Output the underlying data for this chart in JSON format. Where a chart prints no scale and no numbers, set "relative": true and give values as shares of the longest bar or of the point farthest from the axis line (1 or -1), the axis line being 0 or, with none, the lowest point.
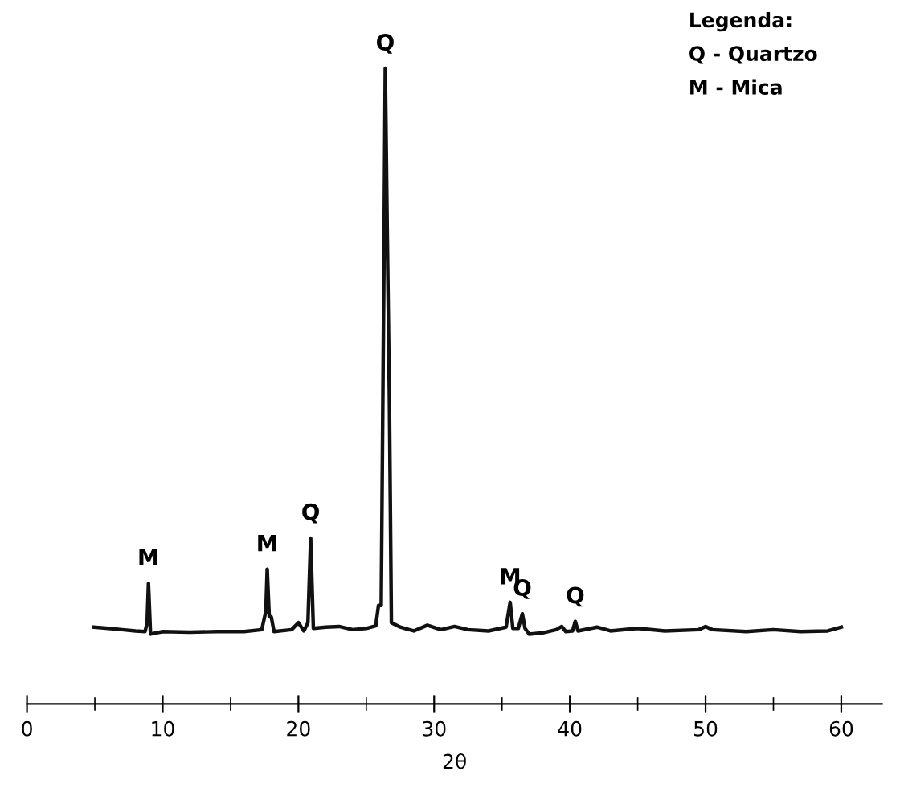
{
  "chart_data": {
    "type": "line",
    "relative": true,
    "xlabel": "2θ",
    "xlim": [
      0,
      63
    ],
    "xticks": [
      0,
      {
        "value": 5,
        "label": null
      },
      10,
      {
        "value": 15,
        "label": null
      },
      20,
      {
        "value": 25,
        "label": null
      },
      30,
      {
        "value": 35,
        "label": null
      },
      40,
      {
        "value": 45,
        "label": null
      },
      50,
      {
        "value": 55,
        "label": null
      },
      60
    ],
    "grid": false,
    "marker": "none",
    "line_style": "solid",
    "series": [
      {
        "color": "#111111",
        "x": [
          4.9,
          6,
          7,
          8,
          8.7,
          8.85,
          8.95,
          9.1,
          10,
          12,
          14,
          16,
          17.3,
          17.6,
          17.7,
          17.85,
          18.0,
          18.2,
          19.5,
          20,
          20.4,
          20.7,
          20.9,
          21.1,
          22,
          23,
          24,
          25,
          25.7,
          25.9,
          26.1,
          26.3,
          26.4,
          26.55,
          26.7,
          26.85,
          27.5,
          28.5,
          29.5,
          30.5,
          31.5,
          32.5,
          34,
          35.3,
          35.6,
          35.8,
          36.2,
          36.5,
          36.7,
          37,
          38,
          39,
          39.4,
          39.7,
          40.2,
          40.4,
          40.6,
          42,
          43,
          45,
          47,
          49.5,
          50,
          50.5,
          53,
          55,
          57,
          59,
          60
        ],
        "values": [
          0.121,
          0.119,
          0.117,
          0.115,
          0.114,
          0.128,
          0.19,
          0.11,
          0.114,
          0.113,
          0.114,
          0.114,
          0.117,
          0.146,
          0.212,
          0.137,
          0.137,
          0.114,
          0.117,
          0.128,
          0.115,
          0.128,
          0.261,
          0.119,
          0.121,
          0.122,
          0.117,
          0.119,
          0.123,
          0.155,
          0.155,
          0.688,
          1.0,
          0.733,
          0.484,
          0.128,
          0.121,
          0.115,
          0.124,
          0.117,
          0.122,
          0.117,
          0.115,
          0.121,
          0.16,
          0.119,
          0.119,
          0.142,
          0.119,
          0.11,
          0.112,
          0.117,
          0.122,
          0.114,
          0.115,
          0.13,
          0.115,
          0.121,
          0.115,
          0.119,
          0.115,
          0.117,
          0.122,
          0.117,
          0.114,
          0.117,
          0.114,
          0.115,
          0.121
        ]
      }
    ],
    "annotations": [
      {
        "text": "M",
        "x": 8.95,
        "y": 0.19
      },
      {
        "text": "M",
        "x": 17.7,
        "y": 0.212
      },
      {
        "text": "Q",
        "x": 20.9,
        "y": 0.261
      },
      {
        "text": "Q",
        "x": 26.4,
        "y": 1.0
      },
      {
        "text": "M",
        "x": 35.6,
        "y": 0.16
      },
      {
        "text": "Q",
        "x": 36.5,
        "y": 0.142
      },
      {
        "text": "Q",
        "x": 40.4,
        "y": 0.13
      },
      "Legenda:",
      "Q - Quartzo",
      "M - Mica"
    ]
  }
}
